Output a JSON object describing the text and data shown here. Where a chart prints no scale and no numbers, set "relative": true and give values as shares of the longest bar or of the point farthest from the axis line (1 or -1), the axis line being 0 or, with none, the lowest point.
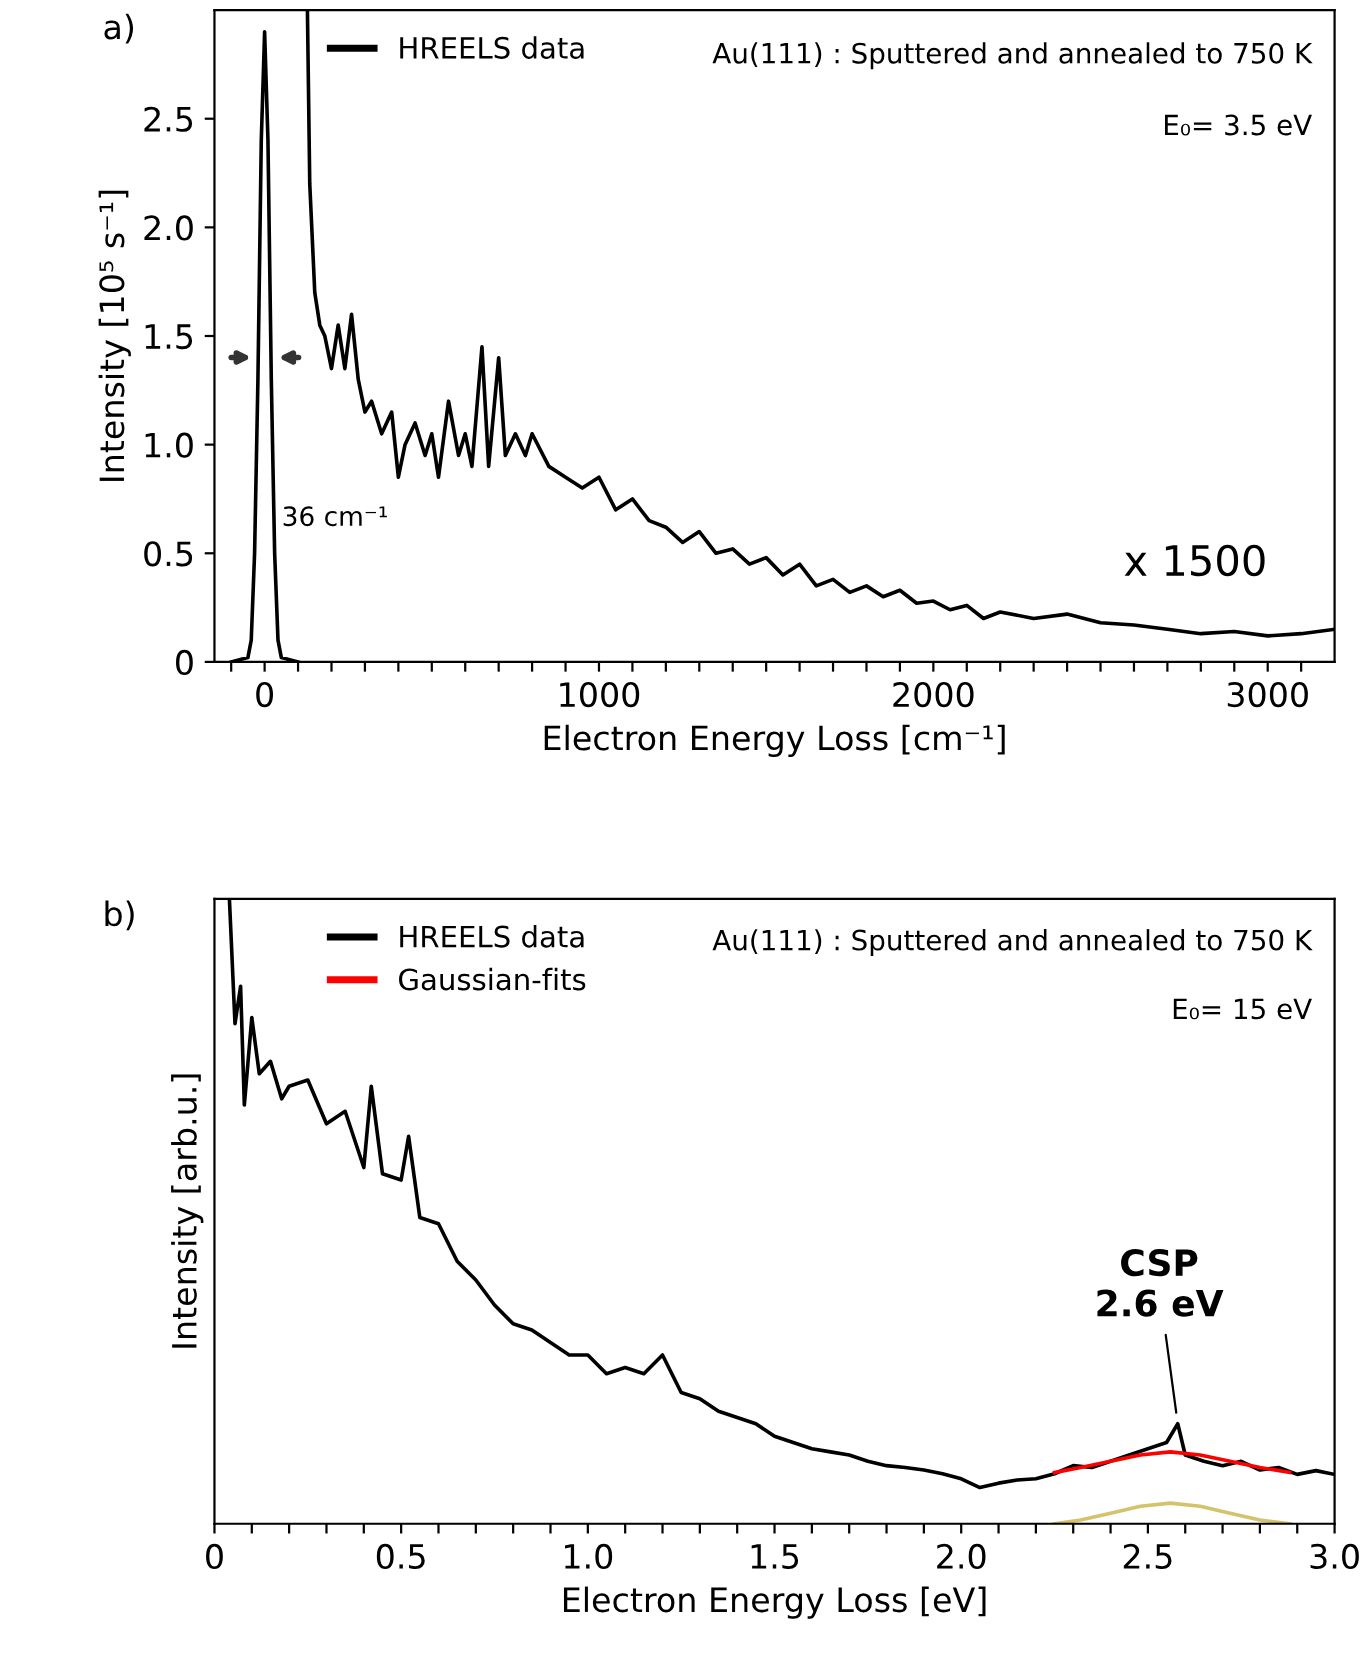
{
  "chart_data": [
    {
      "type": "line",
      "title": "a)",
      "xlabel": "Electron Energy Loss [cm⁻¹]",
      "ylabel": "Intensity [10⁵ s⁻¹]",
      "series": [
        {
          "name": "HREELS data",
          "color": "#000000",
          "x": [
            -100,
            -50,
            -40,
            -30,
            -20,
            -10,
            0,
            10,
            20,
            30,
            40,
            50,
            100,
            115,
            128,
            135,
            150,
            165,
            180,
            200,
            220,
            240,
            260,
            280,
            300,
            320,
            350,
            380,
            400,
            420,
            450,
            480,
            500,
            520,
            550,
            580,
            600,
            620,
            650,
            670,
            700,
            720,
            750,
            780,
            800,
            850,
            900,
            950,
            1000,
            1050,
            1100,
            1150,
            1200,
            1250,
            1300,
            1350,
            1400,
            1450,
            1500,
            1550,
            1600,
            1650,
            1700,
            1750,
            1800,
            1850,
            1900,
            1950,
            2000,
            2050,
            2100,
            2150,
            2200,
            2300,
            2400,
            2500,
            2600,
            2700,
            2800,
            2900,
            3000,
            3100,
            3200
          ],
          "values": [
            0,
            0.02,
            0.1,
            0.5,
            1.3,
            2.4,
            2.9,
            2.4,
            1.3,
            0.5,
            0.1,
            0.02,
            0,
            null,
            3.0,
            2.2,
            1.7,
            1.55,
            1.5,
            1.35,
            1.55,
            1.35,
            1.6,
            1.3,
            1.15,
            1.2,
            1.05,
            1.15,
            0.85,
            1.0,
            1.1,
            0.95,
            1.05,
            0.85,
            1.2,
            0.95,
            1.05,
            0.9,
            1.45,
            0.9,
            1.4,
            0.95,
            1.05,
            0.95,
            1.05,
            0.9,
            0.85,
            0.8,
            0.85,
            0.7,
            0.75,
            0.65,
            0.62,
            0.55,
            0.6,
            0.5,
            0.52,
            0.45,
            0.48,
            0.4,
            0.45,
            0.35,
            0.38,
            0.32,
            0.35,
            0.3,
            0.33,
            0.27,
            0.28,
            0.24,
            0.26,
            0.2,
            0.23,
            0.2,
            0.22,
            0.18,
            0.17,
            0.15,
            0.13,
            0.14,
            0.12,
            0.13,
            0.15
          ]
        }
      ],
      "xlim": [
        -150,
        3200
      ],
      "ylim": [
        0,
        3.0
      ],
      "xticks": [
        {
          "value": -100,
          "label": null
        },
        0,
        {
          "value": 100,
          "label": null
        },
        {
          "value": 200,
          "label": null
        },
        {
          "value": 300,
          "label": null
        },
        {
          "value": 400,
          "label": null
        },
        {
          "value": 500,
          "label": null
        },
        {
          "value": 600,
          "label": null
        },
        {
          "value": 700,
          "label": null
        },
        {
          "value": 800,
          "label": null
        },
        {
          "value": 900,
          "label": null
        },
        1000,
        {
          "value": 1100,
          "label": null
        },
        {
          "value": 1200,
          "label": null
        },
        {
          "value": 1300,
          "label": null
        },
        {
          "value": 1400,
          "label": null
        },
        {
          "value": 1500,
          "label": null
        },
        {
          "value": 1600,
          "label": null
        },
        {
          "value": 1700,
          "label": null
        },
        {
          "value": 1800,
          "label": null
        },
        {
          "value": 1900,
          "label": null
        },
        2000,
        {
          "value": 2100,
          "label": null
        },
        {
          "value": 2200,
          "label": null
        },
        {
          "value": 2300,
          "label": null
        },
        {
          "value": 2400,
          "label": null
        },
        {
          "value": 2500,
          "label": null
        },
        {
          "value": 2600,
          "label": null
        },
        {
          "value": 2700,
          "label": null
        },
        {
          "value": 2800,
          "label": null
        },
        {
          "value": 2900,
          "label": null
        },
        3000,
        {
          "value": 3100,
          "label": null
        }
      ],
      "yticks": [
        0,
        0.5,
        {
          "value": 1.0,
          "label": "1.0"
        },
        1.5,
        {
          "value": 2.0,
          "label": "2.0"
        },
        2.5
      ],
      "legend": "top left",
      "grid": false,
      "annotations": [
        "Au(111) : Sputtered and annealed to 750 K",
        "E₀= 3.5 eV",
        "x 1500",
        "36 cm⁻¹"
      ]
    },
    {
      "type": "line",
      "title": "b)",
      "xlabel": "Electron Energy Loss [eV]",
      "ylabel": "Intensity [arb.u.]",
      "relative": true,
      "series": [
        {
          "name": "HREELS data",
          "color": "#000000",
          "x": [
            0.04,
            0.055,
            0.07,
            0.08,
            0.1,
            0.12,
            0.15,
            0.18,
            0.2,
            0.25,
            0.3,
            0.35,
            0.4,
            0.42,
            0.45,
            0.5,
            0.52,
            0.55,
            0.6,
            0.65,
            0.7,
            0.75,
            0.8,
            0.85,
            0.9,
            0.95,
            1.0,
            1.05,
            1.1,
            1.15,
            1.2,
            1.25,
            1.3,
            1.35,
            1.4,
            1.45,
            1.5,
            1.55,
            1.6,
            1.65,
            1.7,
            1.75,
            1.8,
            1.85,
            1.9,
            1.95,
            2.0,
            2.05,
            2.1,
            2.15,
            2.2,
            2.25,
            2.3,
            2.35,
            2.4,
            2.45,
            2.5,
            2.55,
            2.58,
            2.6,
            2.65,
            2.7,
            2.75,
            2.8,
            2.85,
            2.9,
            2.95,
            3.0
          ],
          "values": [
            1.0,
            0.8,
            0.86,
            0.67,
            0.81,
            0.72,
            0.74,
            0.68,
            0.7,
            0.71,
            0.64,
            0.66,
            0.57,
            0.7,
            0.56,
            0.55,
            0.62,
            0.49,
            0.48,
            0.42,
            0.39,
            0.35,
            0.32,
            0.31,
            0.29,
            0.27,
            0.27,
            0.24,
            0.25,
            0.24,
            0.27,
            0.21,
            0.2,
            0.18,
            0.17,
            0.16,
            0.14,
            0.13,
            0.12,
            0.115,
            0.11,
            0.1,
            0.093,
            0.09,
            0.086,
            0.08,
            0.072,
            0.058,
            0.065,
            0.07,
            0.072,
            0.08,
            0.093,
            0.09,
            0.1,
            0.11,
            0.12,
            0.13,
            0.16,
            0.11,
            0.1,
            0.093,
            0.1,
            0.086,
            0.09,
            0.079,
            0.085,
            0.079
          ]
        },
        {
          "name": "Gaussian-fits",
          "color": "#ff0000",
          "x": [
            2.25,
            2.32,
            2.4,
            2.48,
            2.56,
            2.64,
            2.72,
            2.8,
            2.88
          ],
          "values": [
            0.082,
            0.09,
            0.1,
            0.11,
            0.115,
            0.11,
            0.1,
            0.09,
            0.082
          ]
        },
        {
          "color": "#d4c36a",
          "x": [
            2.25,
            2.32,
            2.4,
            2.48,
            2.56,
            2.64,
            2.72,
            2.8,
            2.88
          ],
          "values": [
            0.0,
            0.006,
            0.017,
            0.028,
            0.033,
            0.028,
            0.017,
            0.006,
            0.0
          ]
        }
      ],
      "xlim": [
        0,
        3.0
      ],
      "xticks": [
        0,
        {
          "value": 0.1,
          "label": null
        },
        {
          "value": 0.2,
          "label": null
        },
        {
          "value": 0.3,
          "label": null
        },
        {
          "value": 0.4,
          "label": null
        },
        0.5,
        {
          "value": 0.6,
          "label": null
        },
        {
          "value": 0.7,
          "label": null
        },
        {
          "value": 0.8,
          "label": null
        },
        {
          "value": 0.9,
          "label": null
        },
        {
          "value": 1.0,
          "label": "1.0"
        },
        {
          "value": 1.1,
          "label": null
        },
        {
          "value": 1.2,
          "label": null
        },
        {
          "value": 1.3,
          "label": null
        },
        {
          "value": 1.4,
          "label": null
        },
        1.5,
        {
          "value": 1.6,
          "label": null
        },
        {
          "value": 1.7,
          "label": null
        },
        {
          "value": 1.8,
          "label": null
        },
        {
          "value": 1.9,
          "label": null
        },
        {
          "value": 2.0,
          "label": "2.0"
        },
        {
          "value": 2.1,
          "label": null
        },
        {
          "value": 2.2,
          "label": null
        },
        {
          "value": 2.3,
          "label": null
        },
        {
          "value": 2.4,
          "label": null
        },
        2.5,
        {
          "value": 2.6,
          "label": null
        },
        {
          "value": 2.7,
          "label": null
        },
        {
          "value": 2.8,
          "label": null
        },
        {
          "value": 2.9,
          "label": null
        },
        {
          "value": 3.0,
          "label": "3.0"
        }
      ],
      "legend": "top left",
      "grid": false,
      "annotations": [
        "Au(111) : Sputtered and annealed to 750 K",
        "E₀= 15 eV",
        {
          "text": "CSP\n2.6 eV",
          "x": 2.58,
          "y": 0.16
        }
      ]
    }
  ]
}
